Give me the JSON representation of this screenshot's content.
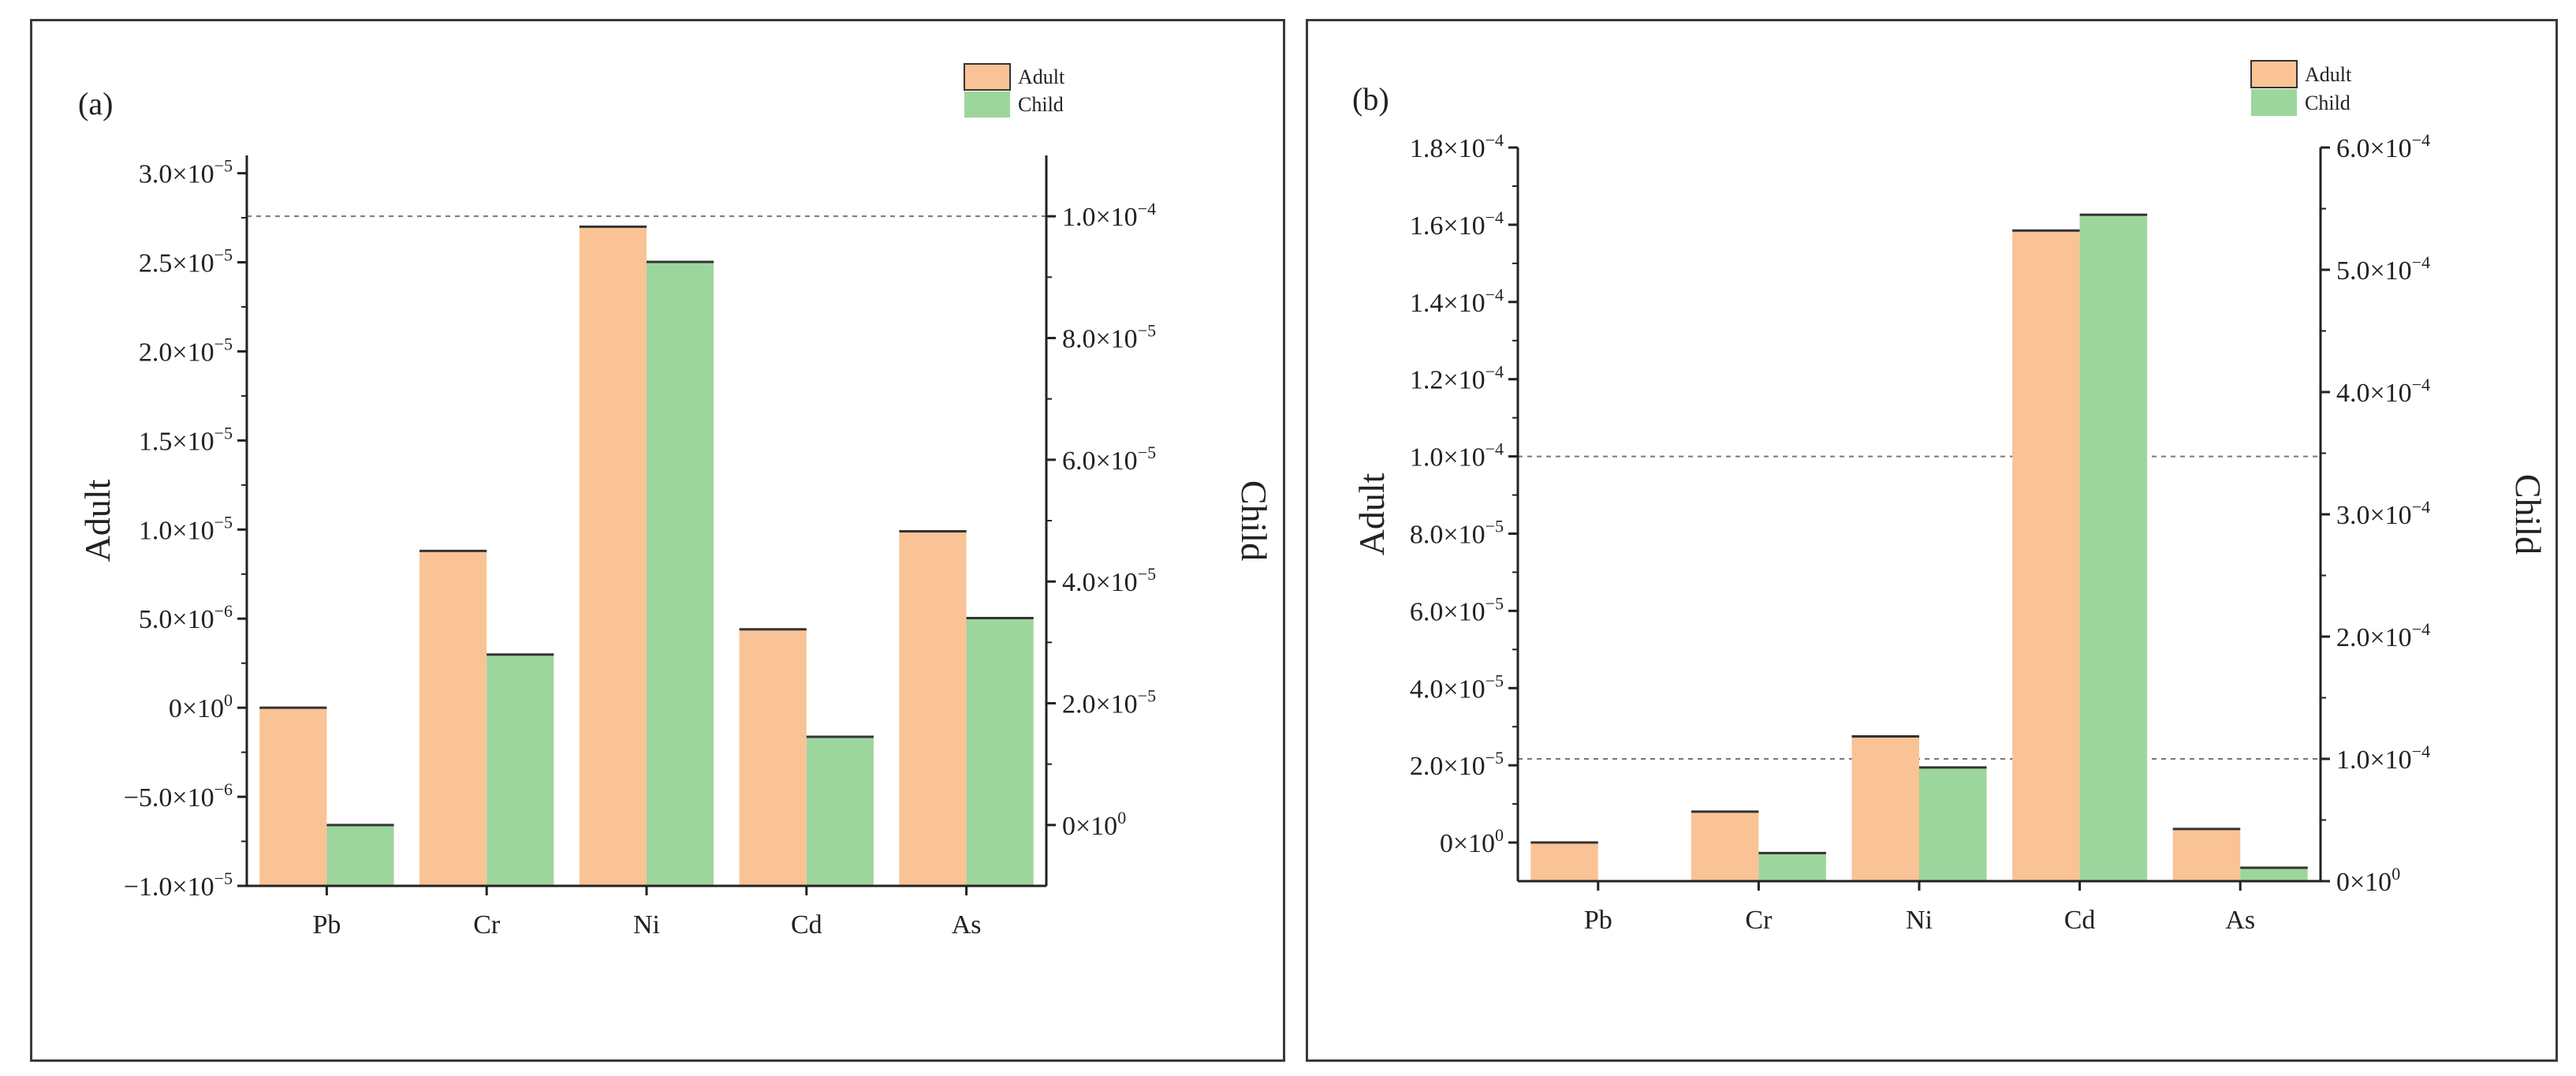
{
  "chart_data": [
    {
      "type": "bar",
      "panel_label": "(a)",
      "categories": [
        "Pb",
        "Cr",
        "Ni",
        "Cd",
        "As"
      ],
      "series": [
        {
          "name": "Adult",
          "axis": "left",
          "values": [
            0,
            8.8e-06,
            2.7e-05,
            4.4e-06,
            9.9e-06
          ]
        },
        {
          "name": "Child",
          "axis": "right",
          "values": [
            0,
            2.8e-05,
            9.25e-05,
            1.45e-05,
            3.4e-05
          ]
        }
      ],
      "ylabel": "Adult",
      "y2label": "Child",
      "ylim": [
        -1e-05,
        3.1e-05
      ],
      "y2lim": [
        -1e-05,
        0.00011
      ],
      "yticks": [
        {
          "m": "−1.0×10",
          "e": "−5"
        },
        {
          "m": "−5.0×10",
          "e": "−6"
        },
        {
          "m": "0×10",
          "e": "0"
        },
        {
          "m": "5.0×10",
          "e": "−6"
        },
        {
          "m": "1.0×10",
          "e": "−5"
        },
        {
          "m": "1.5×10",
          "e": "−5"
        },
        {
          "m": "2.0×10",
          "e": "−5"
        },
        {
          "m": "2.5×10",
          "e": "−5"
        },
        {
          "m": "3.0×10",
          "e": "−5"
        }
      ],
      "yticks_values": [
        -1e-05,
        -5e-06,
        0,
        5e-06,
        1e-05,
        1.5e-05,
        2e-05,
        2.5e-05,
        3e-05
      ],
      "y2ticks": [
        {
          "m": "0×10",
          "e": "0"
        },
        {
          "m": "2.0×10",
          "e": "−5"
        },
        {
          "m": "4.0×10",
          "e": "−5"
        },
        {
          "m": "6.0×10",
          "e": "−5"
        },
        {
          "m": "8.0×10",
          "e": "−5"
        },
        {
          "m": "1.0×10",
          "e": "−4"
        }
      ],
      "y2ticks_values": [
        0,
        2e-05,
        4e-05,
        6e-05,
        8e-05,
        0.0001
      ],
      "reference_lines": [
        {
          "axis": "right",
          "value": 0.0001
        }
      ]
    },
    {
      "type": "bar",
      "panel_label": "(b)",
      "categories": [
        "Pb",
        "Cr",
        "Ni",
        "Cd",
        "As"
      ],
      "series": [
        {
          "name": "Adult",
          "axis": "left",
          "values": [
            0,
            8e-06,
            2.75e-05,
            0.0001585,
            3.5e-06
          ]
        },
        {
          "name": "Child",
          "axis": "right",
          "values": [
            0,
            2.3e-05,
            9.3e-05,
            0.000545,
            1.1e-05
          ]
        }
      ],
      "ylabel": "Adult",
      "y2label": "Child",
      "ylim": [
        -1e-05,
        0.00018
      ],
      "y2lim": [
        0,
        0.0006
      ],
      "yticks": [
        {
          "m": "0×10",
          "e": "0"
        },
        {
          "m": "2.0×10",
          "e": "−5"
        },
        {
          "m": "4.0×10",
          "e": "−5"
        },
        {
          "m": "6.0×10",
          "e": "−5"
        },
        {
          "m": "8.0×10",
          "e": "−5"
        },
        {
          "m": "1.0×10",
          "e": "−4"
        },
        {
          "m": "1.2×10",
          "e": "−4"
        },
        {
          "m": "1.4×10",
          "e": "−4"
        },
        {
          "m": "1.6×10",
          "e": "−4"
        },
        {
          "m": "1.8×10",
          "e": "−4"
        }
      ],
      "yticks_values": [
        0,
        2e-05,
        4e-05,
        6e-05,
        8e-05,
        0.0001,
        0.00012,
        0.00014,
        0.00016,
        0.00018
      ],
      "y2ticks": [
        {
          "m": "0×10",
          "e": "0"
        },
        {
          "m": "1.0×10",
          "e": "−4"
        },
        {
          "m": "2.0×10",
          "e": "−4"
        },
        {
          "m": "3.0×10",
          "e": "−4"
        },
        {
          "m": "4.0×10",
          "e": "−4"
        },
        {
          "m": "5.0×10",
          "e": "−4"
        },
        {
          "m": "6.0×10",
          "e": "−4"
        }
      ],
      "y2ticks_values": [
        0,
        0.0001,
        0.0002,
        0.0003,
        0.0004,
        0.0005,
        0.0006
      ],
      "reference_lines": [
        {
          "axis": "left",
          "value": 0.0001
        },
        {
          "axis": "right",
          "value": 0.0001
        }
      ]
    }
  ],
  "colors": {
    "adult": "#f9c396",
    "child": "#9dd69c",
    "bar_edge": "#333333",
    "axis": "#222222",
    "reference_line": "#777777"
  }
}
